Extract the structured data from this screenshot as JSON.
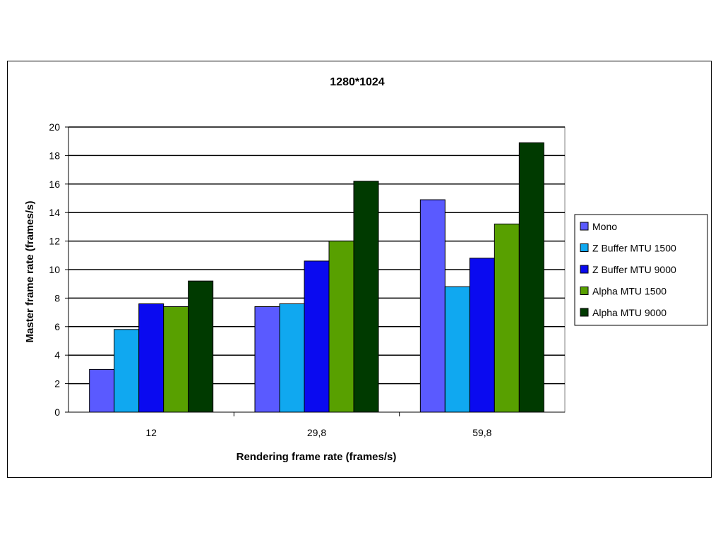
{
  "chart_data": {
    "type": "bar",
    "title": "1280*1024",
    "xlabel": "Rendering frame rate (frames/s)",
    "ylabel": "Master frame rate (frames/s)",
    "categories": [
      "12",
      "29,8",
      "59,8"
    ],
    "ylim": [
      0,
      20
    ],
    "yticks": [
      0,
      2,
      4,
      6,
      8,
      10,
      12,
      14,
      16,
      18,
      20
    ],
    "grid": true,
    "legend_position": "right",
    "series": [
      {
        "name": "Mono",
        "color": "#5a5aff",
        "values": [
          3.0,
          7.4,
          14.9
        ]
      },
      {
        "name": "Z Buffer MTU 1500",
        "color": "#10a8f0",
        "values": [
          5.8,
          7.6,
          8.8
        ]
      },
      {
        "name": "Z Buffer MTU 9000",
        "color": "#0a0af0",
        "values": [
          7.6,
          10.6,
          10.8
        ]
      },
      {
        "name": "Alpha MTU 1500",
        "color": "#58a000",
        "values": [
          7.4,
          12.0,
          13.2
        ]
      },
      {
        "name": "Alpha MTU 9000",
        "color": "#003a00",
        "values": [
          9.2,
          16.2,
          18.9
        ]
      }
    ]
  }
}
